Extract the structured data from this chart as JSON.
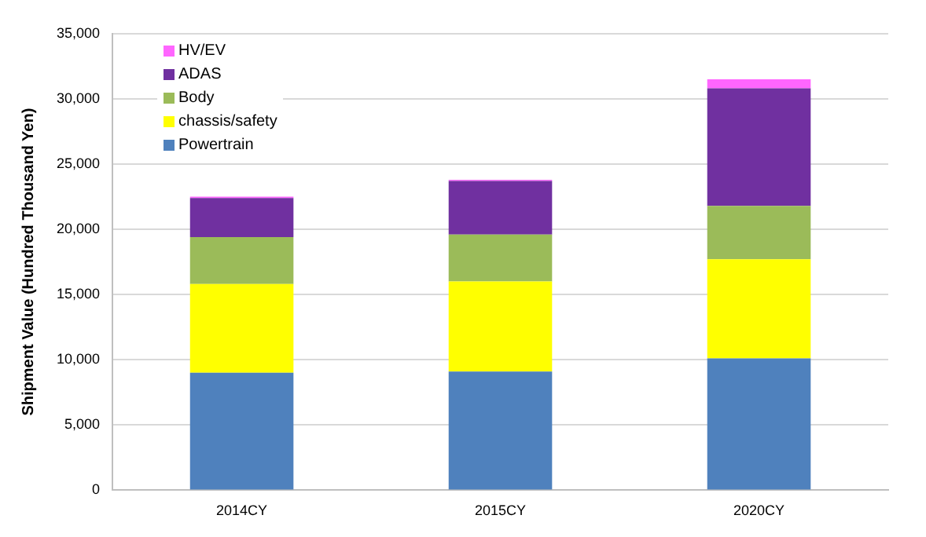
{
  "chart_data": {
    "type": "bar",
    "stacked": true,
    "ylabel": "Shipment Value (Hundred Thousand Yen)",
    "categories": [
      "2014CY",
      "2015CY",
      "2020CY"
    ],
    "series": [
      {
        "name": "Powertrain",
        "color": "#4f81bd",
        "values": [
          9000,
          9100,
          10100
        ]
      },
      {
        "name": "chassis/safety",
        "color": "#ffff00",
        "values": [
          6800,
          6900,
          7600
        ]
      },
      {
        "name": "Body",
        "color": "#9bbb59",
        "values": [
          3600,
          3600,
          4100
        ]
      },
      {
        "name": "ADAS",
        "color": "#7030a0",
        "values": [
          3000,
          4100,
          9000
        ]
      },
      {
        "name": "HV/EV",
        "color": "#ff66ff",
        "values": [
          100,
          100,
          700
        ]
      }
    ],
    "ylim": [
      0,
      35000
    ],
    "yticks": [
      0,
      {
        "value": 5000,
        "label": "5,000"
      },
      {
        "value": 10000,
        "label": "10,000"
      },
      {
        "value": 15000,
        "label": "15,000"
      },
      {
        "value": 20000,
        "label": "20,000"
      },
      {
        "value": 25000,
        "label": "25,000"
      },
      {
        "value": 30000,
        "label": "30,000"
      },
      {
        "value": 35000,
        "label": "35,000"
      }
    ],
    "grid": "y",
    "legend": "top left"
  }
}
